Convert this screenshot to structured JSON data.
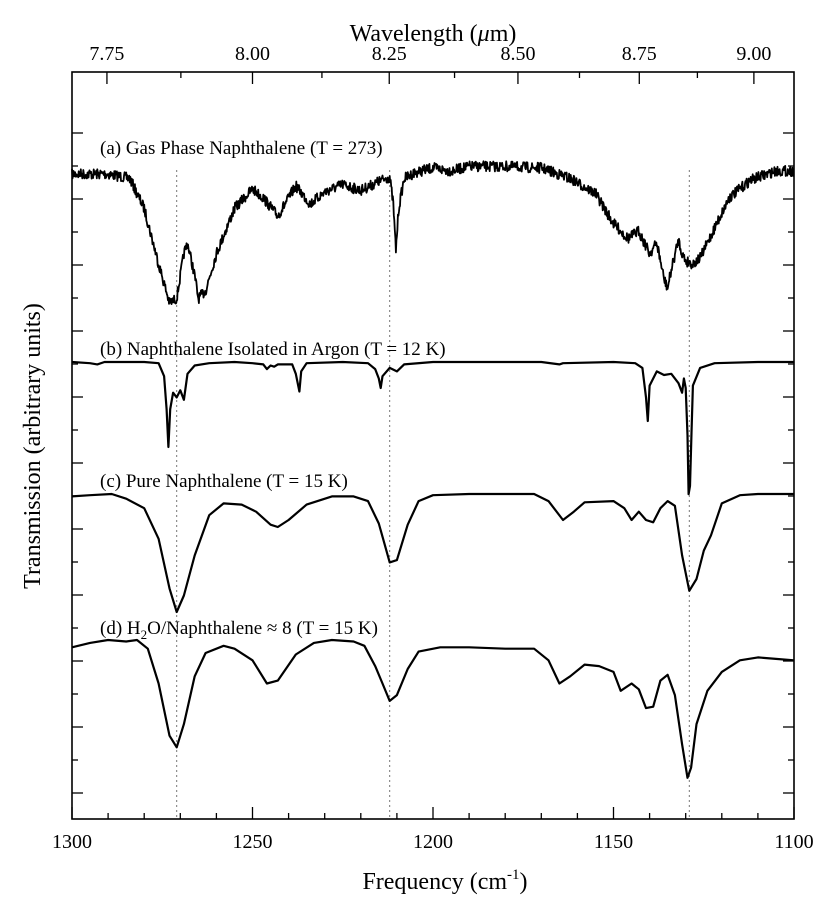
{
  "chart_data": {
    "type": "line",
    "xlabel": "Frequency (cm",
    "xlabel_sup": "-1",
    "xlabel_end": ")",
    "ylabel": "Transmission (arbitrary units)",
    "top_axis_label": "Wavelength (",
    "top_axis_label_mu": "μ",
    "top_axis_label_end": "m)",
    "xlim": [
      1300,
      1100
    ],
    "x_ticks": [
      1300,
      1250,
      1200,
      1150,
      1100
    ],
    "x_tick_labels": [
      "1300",
      "1250",
      "1200",
      "1150",
      "1100"
    ],
    "top_ticks_um": [
      7.75,
      8.0,
      8.25,
      8.5,
      8.75,
      9.0
    ],
    "top_tick_labels": [
      "7.75",
      "8.00",
      "8.25",
      "8.50",
      "8.75",
      "9.00"
    ],
    "reference_lines_cm": [
      1271,
      1212,
      1129
    ],
    "panels": [
      {
        "label": "(a) Gas Phase Naphthalene (T = 273)",
        "noisy": true,
        "points": [
          [
            1300,
            0.02
          ],
          [
            1290,
            0.02
          ],
          [
            1284,
            0.05
          ],
          [
            1280,
            0.25
          ],
          [
            1276,
            0.62
          ],
          [
            1273,
            0.88
          ],
          [
            1271,
            0.85
          ],
          [
            1269,
            0.55
          ],
          [
            1268,
            0.48
          ],
          [
            1266,
            0.7
          ],
          [
            1265,
            0.85
          ],
          [
            1263,
            0.8
          ],
          [
            1260,
            0.55
          ],
          [
            1255,
            0.25
          ],
          [
            1250,
            0.12
          ],
          [
            1247,
            0.18
          ],
          [
            1243,
            0.3
          ],
          [
            1240,
            0.18
          ],
          [
            1238,
            0.1
          ],
          [
            1234,
            0.22
          ],
          [
            1230,
            0.14
          ],
          [
            1225,
            0.09
          ],
          [
            1220,
            0.13
          ],
          [
            1215,
            0.07
          ],
          [
            1212,
            0.04
          ],
          [
            1211,
            0.22
          ],
          [
            1210.3,
            0.53
          ],
          [
            1209.5,
            0.25
          ],
          [
            1208,
            0.05
          ],
          [
            1205,
            0.01
          ],
          [
            1200,
            -0.02
          ],
          [
            1195,
            0.0
          ],
          [
            1190,
            -0.03
          ],
          [
            1180,
            -0.03
          ],
          [
            1170,
            -0.02
          ],
          [
            1162,
            0.05
          ],
          [
            1155,
            0.15
          ],
          [
            1150,
            0.35
          ],
          [
            1146,
            0.45
          ],
          [
            1143,
            0.4
          ],
          [
            1140,
            0.55
          ],
          [
            1138,
            0.48
          ],
          [
            1136,
            0.72
          ],
          [
            1135,
            0.78
          ],
          [
            1134,
            0.66
          ],
          [
            1132,
            0.46
          ],
          [
            1131,
            0.55
          ],
          [
            1130,
            0.6
          ],
          [
            1128,
            0.62
          ],
          [
            1126,
            0.58
          ],
          [
            1122,
            0.38
          ],
          [
            1118,
            0.18
          ],
          [
            1112,
            0.06
          ],
          [
            1105,
            0.0
          ],
          [
            1100,
            0.0
          ]
        ]
      },
      {
        "label": "(b) Naphthalene Isolated in Argon (T = 12 K)",
        "noisy": false,
        "points": [
          [
            1300,
            0.0
          ],
          [
            1295,
            0.01
          ],
          [
            1293,
            0.02
          ],
          [
            1291,
            0.0
          ],
          [
            1280,
            0.0
          ],
          [
            1276,
            0.01
          ],
          [
            1274.5,
            0.12
          ],
          [
            1273.8,
            0.4
          ],
          [
            1273.3,
            0.72
          ],
          [
            1272.8,
            0.4
          ],
          [
            1272,
            0.26
          ],
          [
            1271,
            0.3
          ],
          [
            1270,
            0.24
          ],
          [
            1269,
            0.32
          ],
          [
            1268,
            0.1
          ],
          [
            1266,
            0.03
          ],
          [
            1262,
            0.01
          ],
          [
            1255,
            0.0
          ],
          [
            1250,
            0.01
          ],
          [
            1247,
            0.02
          ],
          [
            1246,
            0.06
          ],
          [
            1245,
            0.03
          ],
          [
            1244,
            0.04
          ],
          [
            1243,
            0.02
          ],
          [
            1239,
            0.02
          ],
          [
            1238,
            0.1
          ],
          [
            1237,
            0.25
          ],
          [
            1236.5,
            0.08
          ],
          [
            1235,
            0.01
          ],
          [
            1225,
            0.0
          ],
          [
            1218,
            0.01
          ],
          [
            1216,
            0.06
          ],
          [
            1215,
            0.14
          ],
          [
            1214.5,
            0.22
          ],
          [
            1214,
            0.12
          ],
          [
            1212,
            0.05
          ],
          [
            1210,
            0.08
          ],
          [
            1208,
            0.02
          ],
          [
            1200,
            0.0
          ],
          [
            1170,
            0.0
          ],
          [
            1165,
            0.02
          ],
          [
            1164,
            0.01
          ],
          [
            1150,
            0.0
          ],
          [
            1144,
            0.01
          ],
          [
            1142,
            0.05
          ],
          [
            1141,
            0.3
          ],
          [
            1140.5,
            0.5
          ],
          [
            1140,
            0.2
          ],
          [
            1138,
            0.08
          ],
          [
            1136,
            0.11
          ],
          [
            1134,
            0.1
          ],
          [
            1132,
            0.18
          ],
          [
            1131,
            0.26
          ],
          [
            1130.5,
            0.14
          ],
          [
            1130,
            0.22
          ],
          [
            1129.5,
            0.62
          ],
          [
            1129.2,
            1.12
          ],
          [
            1128.8,
            1.05
          ],
          [
            1128.4,
            0.6
          ],
          [
            1128,
            0.2
          ],
          [
            1126,
            0.05
          ],
          [
            1122,
            0.01
          ],
          [
            1110,
            0.0
          ],
          [
            1100,
            0.0
          ]
        ]
      },
      {
        "label": "(c) Pure Naphthalene (T = 15 K)",
        "noisy": false,
        "points": [
          [
            1300,
            0.02
          ],
          [
            1295,
            0.01
          ],
          [
            1289,
            0.0
          ],
          [
            1285,
            0.04
          ],
          [
            1280,
            0.12
          ],
          [
            1276,
            0.38
          ],
          [
            1273,
            0.8
          ],
          [
            1271,
            1.0
          ],
          [
            1269,
            0.86
          ],
          [
            1266,
            0.52
          ],
          [
            1262,
            0.18
          ],
          [
            1258,
            0.08
          ],
          [
            1253,
            0.09
          ],
          [
            1249,
            0.15
          ],
          [
            1245,
            0.26
          ],
          [
            1243,
            0.28
          ],
          [
            1240,
            0.22
          ],
          [
            1235,
            0.09
          ],
          [
            1228,
            0.02
          ],
          [
            1222,
            0.02
          ],
          [
            1218,
            0.06
          ],
          [
            1215,
            0.25
          ],
          [
            1212,
            0.58
          ],
          [
            1210,
            0.56
          ],
          [
            1207,
            0.26
          ],
          [
            1204,
            0.06
          ],
          [
            1200,
            0.01
          ],
          [
            1190,
            0.0
          ],
          [
            1180,
            0.0
          ],
          [
            1172,
            0.0
          ],
          [
            1168,
            0.06
          ],
          [
            1164,
            0.22
          ],
          [
            1161,
            0.15
          ],
          [
            1158,
            0.07
          ],
          [
            1150,
            0.06
          ],
          [
            1147,
            0.12
          ],
          [
            1145,
            0.22
          ],
          [
            1143,
            0.15
          ],
          [
            1141,
            0.22
          ],
          [
            1139,
            0.24
          ],
          [
            1137,
            0.12
          ],
          [
            1135,
            0.06
          ],
          [
            1133,
            0.1
          ],
          [
            1131,
            0.52
          ],
          [
            1129,
            0.82
          ],
          [
            1127,
            0.72
          ],
          [
            1125,
            0.48
          ],
          [
            1123,
            0.35
          ],
          [
            1120,
            0.08
          ],
          [
            1115,
            0.01
          ],
          [
            1110,
            0.0
          ],
          [
            1100,
            0.0
          ]
        ]
      },
      {
        "label_pre": "(d) H",
        "label_sub": "2",
        "label_post": "O/Naphthalene ≈ 8  (T = 15 K)",
        "noisy": false,
        "points": [
          [
            1300,
            0.05
          ],
          [
            1295,
            0.02
          ],
          [
            1290,
            0.0
          ],
          [
            1285,
            0.01
          ],
          [
            1282,
            0.0
          ],
          [
            1279,
            0.06
          ],
          [
            1276,
            0.3
          ],
          [
            1273,
            0.66
          ],
          [
            1271,
            0.74
          ],
          [
            1269,
            0.58
          ],
          [
            1266,
            0.25
          ],
          [
            1263,
            0.09
          ],
          [
            1258,
            0.04
          ],
          [
            1255,
            0.06
          ],
          [
            1250,
            0.14
          ],
          [
            1246,
            0.3
          ],
          [
            1243,
            0.28
          ],
          [
            1238,
            0.1
          ],
          [
            1233,
            0.02
          ],
          [
            1228,
            0.0
          ],
          [
            1222,
            0.01
          ],
          [
            1219,
            0.04
          ],
          [
            1216,
            0.18
          ],
          [
            1214,
            0.3
          ],
          [
            1212,
            0.42
          ],
          [
            1210,
            0.38
          ],
          [
            1207,
            0.2
          ],
          [
            1204,
            0.08
          ],
          [
            1198,
            0.05
          ],
          [
            1190,
            0.05
          ],
          [
            1180,
            0.06
          ],
          [
            1172,
            0.06
          ],
          [
            1168,
            0.14
          ],
          [
            1165,
            0.3
          ],
          [
            1162,
            0.25
          ],
          [
            1158,
            0.17
          ],
          [
            1154,
            0.18
          ],
          [
            1150,
            0.22
          ],
          [
            1148,
            0.35
          ],
          [
            1145,
            0.3
          ],
          [
            1143,
            0.34
          ],
          [
            1141,
            0.47
          ],
          [
            1139,
            0.46
          ],
          [
            1137,
            0.28
          ],
          [
            1135,
            0.24
          ],
          [
            1133,
            0.38
          ],
          [
            1131,
            0.72
          ],
          [
            1129.5,
            0.95
          ],
          [
            1128.5,
            0.88
          ],
          [
            1127,
            0.58
          ],
          [
            1124,
            0.35
          ],
          [
            1120,
            0.22
          ],
          [
            1115,
            0.14
          ],
          [
            1110,
            0.12
          ],
          [
            1105,
            0.13
          ],
          [
            1100,
            0.14
          ]
        ]
      }
    ]
  }
}
